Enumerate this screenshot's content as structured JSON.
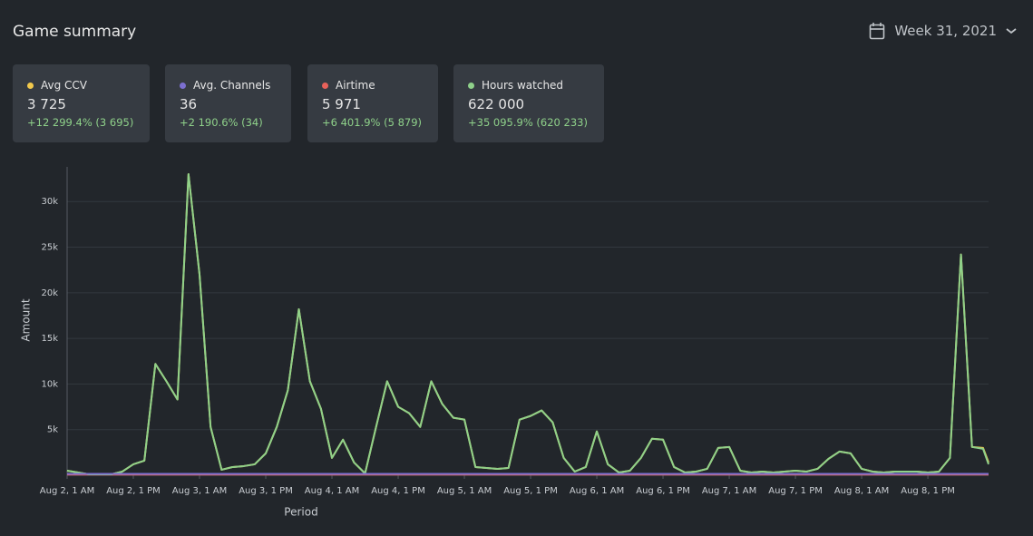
{
  "header": {
    "title": "Game summary",
    "period": "Week 31, 2021"
  },
  "stats": [
    {
      "value": "3 725",
      "change": "+12 299.4% (3 695)"
    },
    {
      "value": "36",
      "change": "+2 190.6% (34)"
    },
    {
      "value": "5 971",
      "change": "+6 401.9% (5 879)"
    },
    {
      "value": "622 000",
      "change": "+35 095.9% (620 233)"
    }
  ],
  "chart_data": {
    "type": "line",
    "y_label": "Amount",
    "x_label": "Period",
    "x": [
      0,
      2,
      4,
      6,
      8,
      10,
      12,
      14,
      16,
      18,
      20,
      22,
      24,
      26,
      28,
      30,
      32,
      34,
      36,
      38,
      40,
      42,
      44,
      46,
      48,
      50,
      52,
      54,
      56,
      58,
      60,
      62,
      64,
      66,
      68,
      70,
      72,
      74,
      76,
      78,
      80,
      82,
      84,
      86,
      88,
      90,
      92,
      94,
      96,
      98,
      100,
      102,
      104,
      106,
      108,
      110,
      112,
      114,
      116,
      118,
      120,
      122,
      124,
      126,
      128,
      130,
      132,
      134,
      136,
      138,
      140,
      142,
      144,
      146,
      148,
      150,
      152,
      154,
      156,
      158,
      160,
      162,
      164,
      166,
      167
    ],
    "xlim": [
      0,
      167
    ],
    "xticks": [
      {
        "value": 0,
        "label": "Aug 2, 1 AM"
      },
      {
        "value": 12,
        "label": "Aug 2, 1 PM"
      },
      {
        "value": 24,
        "label": "Aug 3, 1 AM"
      },
      {
        "value": 36,
        "label": "Aug 3, 1 PM"
      },
      {
        "value": 48,
        "label": "Aug 4, 1 AM"
      },
      {
        "value": 60,
        "label": "Aug 4, 1 PM"
      },
      {
        "value": 72,
        "label": "Aug 5, 1 AM"
      },
      {
        "value": 84,
        "label": "Aug 5, 1 PM"
      },
      {
        "value": 96,
        "label": "Aug 6, 1 AM"
      },
      {
        "value": 108,
        "label": "Aug 6, 1 PM"
      },
      {
        "value": 120,
        "label": "Aug 7, 1 AM"
      },
      {
        "value": 132,
        "label": "Aug 7, 1 PM"
      },
      {
        "value": 144,
        "label": "Aug 8, 1 AM"
      },
      {
        "value": 156,
        "label": "Aug 8, 1 PM"
      }
    ],
    "ylim": [
      0,
      34000
    ],
    "yticks": [
      {
        "value": 5000,
        "label": "5k"
      },
      {
        "value": 10000,
        "label": "10k"
      },
      {
        "value": 15000,
        "label": "15k"
      },
      {
        "value": 20000,
        "label": "20k"
      },
      {
        "value": 25000,
        "label": "25k"
      },
      {
        "value": 30000,
        "label": "30k"
      }
    ],
    "grid": true,
    "series": [
      {
        "name": "Avg CCV",
        "color": "#f2c94c",
        "values": [
          500,
          300,
          100,
          100,
          100,
          400,
          1200,
          1600,
          12200,
          10300,
          8300,
          33000,
          22000,
          5300,
          600,
          900,
          1000,
          1200,
          2400,
          5300,
          9300,
          18200,
          10300,
          7300,
          1900,
          3900,
          1400,
          200,
          5300,
          10300,
          7500,
          6800,
          5300,
          10300,
          7800,
          6300,
          6100,
          900,
          800,
          700,
          800,
          6100,
          6500,
          7100,
          5800,
          1900,
          400,
          900,
          4800,
          1200,
          300,
          500,
          1900,
          4000,
          3900,
          900,
          300,
          400,
          700,
          3000,
          3100,
          500,
          300,
          400,
          300,
          400,
          500,
          400,
          700,
          1800,
          2600,
          2400,
          700,
          400,
          300,
          400,
          400,
          400,
          300,
          400,
          1900,
          24200,
          3100,
          3000,
          1400
        ]
      },
      {
        "name": "Avg. Channels",
        "color": "#7c6fd0",
        "values": [
          150,
          150,
          150,
          150,
          150,
          150,
          150,
          150,
          150,
          150,
          150,
          150,
          150,
          150,
          150,
          150,
          150,
          150,
          150,
          150,
          150,
          150,
          150,
          150,
          150,
          150,
          150,
          150,
          150,
          150,
          150,
          150,
          150,
          150,
          150,
          150,
          150,
          150,
          150,
          150,
          150,
          150,
          150,
          150,
          150,
          150,
          150,
          150,
          150,
          150,
          150,
          150,
          150,
          150,
          150,
          150,
          150,
          150,
          150,
          150,
          150,
          150,
          150,
          150,
          150,
          150,
          150,
          150,
          150,
          150,
          150,
          150,
          150,
          150,
          150,
          150,
          150,
          150,
          150,
          150,
          150,
          150,
          150,
          150,
          150
        ]
      },
      {
        "name": "Airtime",
        "color": "#e8615a",
        "values": [
          80,
          80,
          80,
          80,
          80,
          80,
          80,
          80,
          80,
          80,
          80,
          80,
          80,
          80,
          80,
          80,
          80,
          80,
          80,
          80,
          80,
          80,
          80,
          80,
          80,
          80,
          80,
          80,
          80,
          80,
          80,
          80,
          80,
          80,
          80,
          80,
          80,
          80,
          80,
          80,
          80,
          80,
          80,
          80,
          80,
          80,
          80,
          80,
          80,
          80,
          80,
          80,
          80,
          80,
          80,
          80,
          80,
          80,
          80,
          80,
          80,
          80,
          80,
          80,
          80,
          80,
          80,
          80,
          80,
          80,
          80,
          80,
          80,
          80,
          80,
          80,
          80,
          80,
          80,
          80,
          80,
          80,
          80,
          80,
          80
        ]
      },
      {
        "name": "Hours watched",
        "color": "#8fd18a",
        "values": [
          500,
          300,
          100,
          100,
          100,
          400,
          1200,
          1600,
          12200,
          10300,
          8300,
          33000,
          22000,
          5300,
          600,
          900,
          1000,
          1200,
          2400,
          5300,
          9300,
          18200,
          10300,
          7300,
          1900,
          3900,
          1400,
          200,
          5300,
          10300,
          7500,
          6800,
          5300,
          10300,
          7800,
          6300,
          6100,
          900,
          800,
          700,
          800,
          6100,
          6500,
          7100,
          5800,
          1900,
          400,
          900,
          4800,
          1200,
          300,
          500,
          1900,
          4000,
          3900,
          900,
          300,
          400,
          700,
          3000,
          3100,
          500,
          300,
          400,
          300,
          400,
          500,
          400,
          700,
          1800,
          2600,
          2400,
          700,
          400,
          300,
          400,
          400,
          400,
          300,
          400,
          1900,
          24200,
          3100,
          2900,
          1200
        ]
      }
    ]
  }
}
